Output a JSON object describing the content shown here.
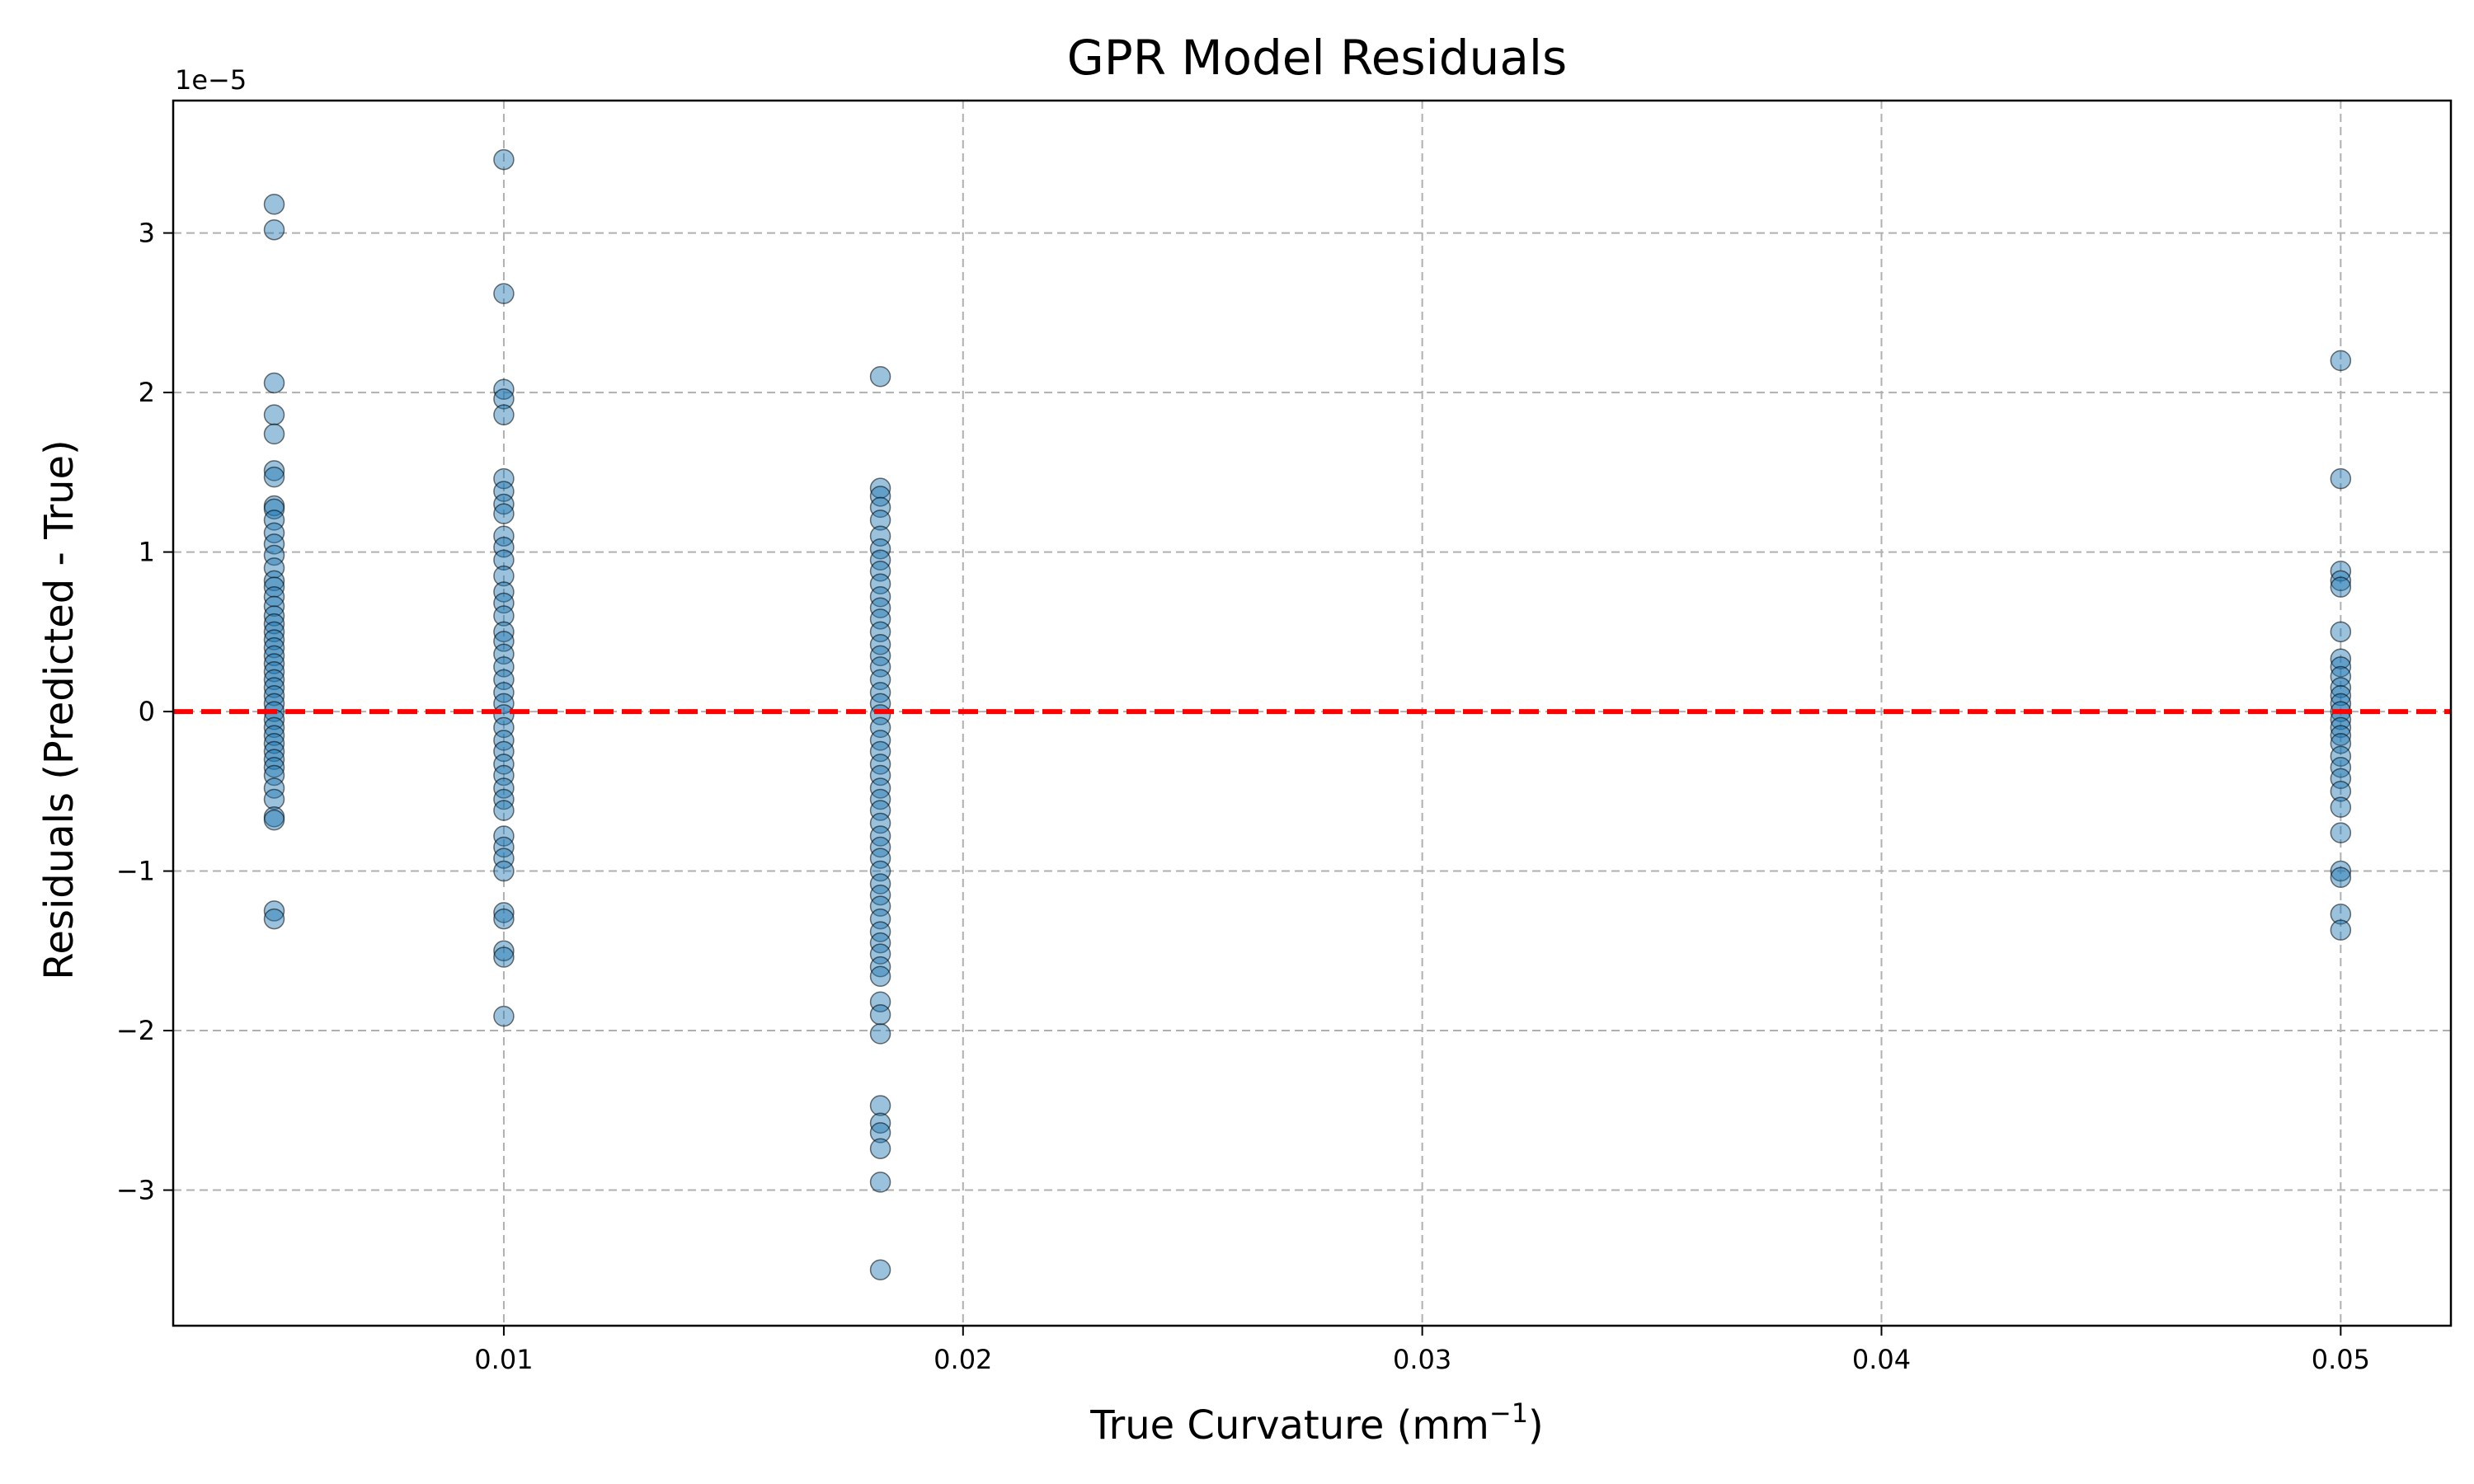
{
  "chart_data": {
    "type": "scatter",
    "title": "GPR Model Residuals",
    "xlabel": {
      "base": "True Curvature (mm",
      "sup": "−1",
      "end": ")"
    },
    "ylabel": "Residuals (Predicted - True)",
    "y_offset_label": "1e−5",
    "xlim": [
      0.0028,
      0.0524
    ],
    "ylim": [
      -3.85,
      3.83
    ],
    "y_scale_note": "values in units of 1e-5",
    "x_ticks": [
      {
        "value": 0.01,
        "label": "0.01"
      },
      {
        "value": 0.02,
        "label": "0.02"
      },
      {
        "value": 0.03,
        "label": "0.03"
      },
      {
        "value": 0.04,
        "label": "0.04"
      },
      {
        "value": 0.05,
        "label": "0.05"
      }
    ],
    "y_ticks": [
      {
        "value": -3,
        "label": "−3"
      },
      {
        "value": -2,
        "label": "−2"
      },
      {
        "value": -1,
        "label": "−1"
      },
      {
        "value": 0,
        "label": "0"
      },
      {
        "value": 1,
        "label": "1"
      },
      {
        "value": 2,
        "label": "2"
      },
      {
        "value": 3,
        "label": "3"
      }
    ],
    "grid": true,
    "reference_line": {
      "y": 0,
      "color": "#ff0000",
      "style": "dashed"
    },
    "point_color": "#1f77b4",
    "series": [
      {
        "x": 0.005,
        "y": [
          3.18,
          3.02,
          2.06,
          1.86,
          1.74,
          1.51,
          1.47,
          1.29,
          1.27,
          1.2,
          1.12,
          1.05,
          0.98,
          0.9,
          0.82,
          0.78,
          0.72,
          0.66,
          0.6,
          0.55,
          0.5,
          0.45,
          0.4,
          0.35,
          0.3,
          0.25,
          0.2,
          0.15,
          0.1,
          0.05,
          0.0,
          -0.05,
          -0.1,
          -0.15,
          -0.2,
          -0.25,
          -0.3,
          -0.35,
          -0.4,
          -0.48,
          -0.55,
          -0.66,
          -0.68,
          -1.25,
          -1.3
        ]
      },
      {
        "x": 0.01,
        "y": [
          3.46,
          2.62,
          2.02,
          1.96,
          1.86,
          1.46,
          1.38,
          1.3,
          1.24,
          1.1,
          1.03,
          0.95,
          0.85,
          0.75,
          0.68,
          0.6,
          0.5,
          0.44,
          0.36,
          0.28,
          0.2,
          0.12,
          0.05,
          -0.02,
          -0.1,
          -0.18,
          -0.25,
          -0.33,
          -0.4,
          -0.48,
          -0.55,
          -0.62,
          -0.78,
          -0.85,
          -0.92,
          -1.0,
          -1.26,
          -1.3,
          -1.5,
          -1.54,
          -1.91
        ]
      },
      {
        "x": 0.0182,
        "y": [
          2.1,
          1.4,
          1.35,
          1.28,
          1.2,
          1.1,
          1.02,
          0.95,
          0.88,
          0.8,
          0.72,
          0.65,
          0.58,
          0.5,
          0.42,
          0.35,
          0.28,
          0.2,
          0.12,
          0.05,
          -0.02,
          -0.1,
          -0.18,
          -0.25,
          -0.33,
          -0.4,
          -0.48,
          -0.55,
          -0.62,
          -0.7,
          -0.78,
          -0.85,
          -0.92,
          -1.0,
          -1.08,
          -1.15,
          -1.22,
          -1.3,
          -1.38,
          -1.45,
          -1.52,
          -1.6,
          -1.66,
          -1.82,
          -1.9,
          -2.02,
          -2.47,
          -2.58,
          -2.64,
          -2.74,
          -2.95,
          -3.5
        ]
      },
      {
        "x": 0.05,
        "y": [
          2.2,
          1.46,
          0.88,
          0.82,
          0.78,
          0.5,
          0.33,
          0.28,
          0.22,
          0.15,
          0.1,
          0.05,
          0.0,
          -0.05,
          -0.1,
          -0.15,
          -0.2,
          -0.28,
          -0.35,
          -0.42,
          -0.5,
          -0.6,
          -0.76,
          -1.0,
          -1.04,
          -1.27,
          -1.37
        ]
      }
    ]
  }
}
